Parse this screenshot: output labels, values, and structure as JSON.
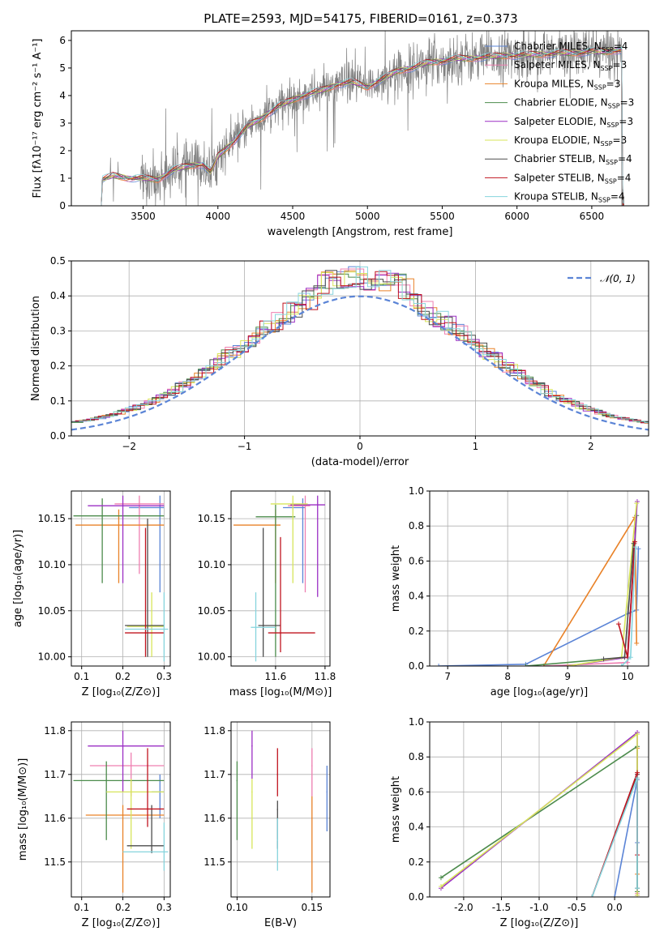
{
  "figure_title": "PLATE=2593, MJD=54175, FIBERID=0161, z=0.373",
  "colors": {
    "Chabrier MILES": "#5b84d6",
    "Salpeter MILES": "#ef7fb1",
    "Kroupa MILES": "#e98228",
    "Chabrier ELODIE": "#4c8b4c",
    "Salpeter ELODIE": "#9b2fc4",
    "Kroupa ELODIE": "#d7e55a",
    "Chabrier STELIB": "#4d4d4d",
    "Salpeter STELIB": "#c0141f",
    "Kroupa STELIB": "#86d4dd",
    "data": "#808080"
  },
  "legend_entries": [
    {
      "name": "Chabrier MILES",
      "nssp": "4"
    },
    {
      "name": "Salpeter MILES",
      "nssp": "3"
    },
    {
      "name": "Kroupa MILES",
      "nssp": "3"
    },
    {
      "name": "Chabrier ELODIE",
      "nssp": "3"
    },
    {
      "name": "Salpeter ELODIE",
      "nssp": "3"
    },
    {
      "name": "Kroupa ELODIE",
      "nssp": "3"
    },
    {
      "name": "Chabrier STELIB",
      "nssp": "4"
    },
    {
      "name": "Salpeter STELIB",
      "nssp": "4"
    },
    {
      "name": "Kroupa STELIB",
      "nssp": "4"
    }
  ],
  "chart_data": [
    {
      "id": "spectrum",
      "type": "line",
      "title": "PLATE=2593, MJD=54175, FIBERID=0161, z=0.373",
      "xlabel": "wavelength [Angstrom, rest frame]",
      "ylabel": "Flux [f_λ 10^-17 erg cm^-2 s^-1 A^-1]",
      "xlim": [
        3020,
        6880
      ],
      "ylim": [
        0,
        6.35
      ],
      "xticks": [
        3500,
        4000,
        4500,
        5000,
        5500,
        6000,
        6500
      ],
      "yticks": [
        0,
        1,
        2,
        3,
        4,
        5,
        6
      ],
      "legend_position": "top-right",
      "model_continuum": [
        [
          3220,
          0
        ],
        [
          3225,
          0.95
        ],
        [
          3300,
          1.1
        ],
        [
          3400,
          1.0
        ],
        [
          3500,
          1.0
        ],
        [
          3600,
          0.95
        ],
        [
          3700,
          1.3
        ],
        [
          3800,
          1.45
        ],
        [
          3900,
          1.5
        ],
        [
          3950,
          1.2
        ],
        [
          4000,
          1.8
        ],
        [
          4100,
          2.3
        ],
        [
          4200,
          2.9
        ],
        [
          4300,
          3.2
        ],
        [
          4400,
          3.6
        ],
        [
          4500,
          3.85
        ],
        [
          4600,
          4.05
        ],
        [
          4700,
          4.2
        ],
        [
          4800,
          4.4
        ],
        [
          4900,
          4.5
        ],
        [
          5000,
          4.3
        ],
        [
          5100,
          4.6
        ],
        [
          5200,
          4.9
        ],
        [
          5300,
          5.0
        ],
        [
          5400,
          5.2
        ],
        [
          5500,
          5.25
        ],
        [
          5600,
          5.35
        ],
        [
          5700,
          5.35
        ],
        [
          5800,
          5.4
        ],
        [
          5900,
          5.45
        ],
        [
          6000,
          5.45
        ],
        [
          6100,
          5.5
        ],
        [
          6200,
          5.5
        ],
        [
          6300,
          5.55
        ],
        [
          6400,
          5.55
        ],
        [
          6500,
          5.6
        ],
        [
          6600,
          5.6
        ],
        [
          6700,
          5.65
        ]
      ]
    },
    {
      "id": "residuals",
      "type": "histogram",
      "xlabel": "(data-model)/error",
      "ylabel": "Normed distribution",
      "xlim": [
        -2.5,
        2.5
      ],
      "ylim": [
        0,
        0.5
      ],
      "xticks": [
        -2,
        -1,
        0,
        1,
        2
      ],
      "yticks": [
        0.0,
        0.1,
        0.2,
        0.3,
        0.4,
        0.5
      ],
      "grid": true,
      "reference_curve_label": "N(0,1)",
      "legend_position": "top-right"
    },
    {
      "id": "age_vs_Z",
      "type": "scatter",
      "xlabel": "Z [log10(Z/Z_sun)]",
      "ylabel": "age  [log10(age/yr)]",
      "xlim": [
        0.075,
        0.315
      ],
      "ylim": [
        9.99,
        10.18
      ],
      "xticks": [
        0.1,
        0.2,
        0.3
      ],
      "yticks": [
        10.0,
        10.05,
        10.1,
        10.15
      ],
      "grid": true,
      "points": [
        {
          "model": "Chabrier MILES",
          "x": 0.29,
          "y": 10.162,
          "x_lo": 0.215,
          "x_hi": 0.3,
          "y_lo": 10.07,
          "y_hi": 10.175
        },
        {
          "model": "Salpeter MILES",
          "x": 0.24,
          "y": 10.166,
          "x_lo": 0.18,
          "x_hi": 0.3,
          "y_lo": 10.09,
          "y_hi": 10.175
        },
        {
          "model": "Kroupa MILES",
          "x": 0.19,
          "y": 10.143,
          "x_lo": 0.085,
          "x_hi": 0.3,
          "y_lo": 10.08,
          "y_hi": 10.16
        },
        {
          "model": "Chabrier ELODIE",
          "x": 0.15,
          "y": 10.153,
          "x_lo": 0.08,
          "x_hi": 0.3,
          "y_lo": 10.08,
          "y_hi": 10.172
        },
        {
          "model": "Salpeter ELODIE",
          "x": 0.2,
          "y": 10.164,
          "x_lo": 0.115,
          "x_hi": 0.3,
          "y_lo": 10.08,
          "y_hi": 10.175
        },
        {
          "model": "Kroupa ELODIE",
          "x": 0.27,
          "y": 10.033,
          "x_lo": 0.21,
          "x_hi": 0.3,
          "y_lo": 10.0,
          "y_hi": 10.07
        },
        {
          "model": "Chabrier STELIB",
          "x": 0.26,
          "y": 10.034,
          "x_lo": 0.205,
          "x_hi": 0.3,
          "y_lo": 10.0,
          "y_hi": 10.15
        },
        {
          "model": "Salpeter STELIB",
          "x": 0.255,
          "y": 10.026,
          "x_lo": 0.205,
          "x_hi": 0.3,
          "y_lo": 10.0,
          "y_hi": 10.14
        },
        {
          "model": "Kroupa STELIB",
          "x": 0.3,
          "y": 10.03,
          "x_lo": 0.205,
          "x_hi": 0.31,
          "y_lo": 9.995,
          "y_hi": 10.07
        }
      ]
    },
    {
      "id": "age_vs_mass",
      "type": "scatter",
      "xlabel": "mass [log10(M/M_sun)]",
      "ylabel": "",
      "xlim": [
        11.42,
        11.82
      ],
      "ylim": [
        9.99,
        10.18
      ],
      "xticks": [
        11.6,
        11.8
      ],
      "yticks": [
        10.0,
        10.05,
        10.1,
        10.15
      ],
      "grid": true,
      "points": [
        {
          "model": "Chabrier MILES",
          "x": 11.71,
          "y": 10.162,
          "x_lo": 11.63,
          "x_hi": 11.72,
          "y_lo": 10.08,
          "y_hi": 10.172
        },
        {
          "model": "Salpeter MILES",
          "x": 11.72,
          "y": 10.164,
          "x_lo": 11.65,
          "x_hi": 11.74,
          "y_lo": 10.07,
          "y_hi": 10.175
        },
        {
          "model": "Kroupa MILES",
          "x": 11.6,
          "y": 10.143,
          "x_lo": 11.43,
          "x_hi": 11.62,
          "y_lo": 10.08,
          "y_hi": 10.16
        },
        {
          "model": "Chabrier ELODIE",
          "x": 11.6,
          "y": 10.152,
          "x_lo": 11.52,
          "x_hi": 11.68,
          "y_lo": 10.0,
          "y_hi": 10.165
        },
        {
          "model": "Salpeter ELODIE",
          "x": 11.77,
          "y": 10.165,
          "x_lo": 11.66,
          "x_hi": 11.8,
          "y_lo": 10.065,
          "y_hi": 10.175
        },
        {
          "model": "Kroupa ELODIE",
          "x": 11.67,
          "y": 10.166,
          "x_lo": 11.58,
          "x_hi": 11.73,
          "y_lo": 10.08,
          "y_hi": 10.175
        },
        {
          "model": "Chabrier STELIB",
          "x": 11.55,
          "y": 10.034,
          "x_lo": 11.53,
          "x_hi": 11.62,
          "y_lo": 10.0,
          "y_hi": 10.14
        },
        {
          "model": "Salpeter STELIB",
          "x": 11.62,
          "y": 10.026,
          "x_lo": 11.57,
          "x_hi": 11.76,
          "y_lo": 10.005,
          "y_hi": 10.13
        },
        {
          "model": "Kroupa STELIB",
          "x": 11.52,
          "y": 10.032,
          "x_lo": 11.5,
          "x_hi": 11.6,
          "y_lo": 9.995,
          "y_hi": 10.07
        }
      ]
    },
    {
      "id": "weight_vs_age",
      "type": "line",
      "xlabel": "age  [log10(age/yr)]",
      "ylabel": "mass weight",
      "xlim": [
        6.7,
        10.35
      ],
      "ylim": [
        0,
        1.0
      ],
      "xticks": [
        7,
        8,
        9,
        10
      ],
      "yticks": [
        0.0,
        0.2,
        0.4,
        0.6,
        0.8,
        1.0
      ],
      "grid": true,
      "series": [
        {
          "model": "Chabrier MILES",
          "x": [
            6.85,
            8.3,
            10.0,
            10.15,
            10.18
          ],
          "y": [
            0.0,
            0.01,
            0.3,
            0.32,
            0.67
          ]
        },
        {
          "model": "Salpeter MILES",
          "x": [
            8.6,
            10.0,
            10.12
          ],
          "y": [
            0.0,
            0.02,
            0.7
          ]
        },
        {
          "model": "Kroupa MILES",
          "x": [
            8.6,
            10.12,
            10.15
          ],
          "y": [
            0.0,
            0.85,
            0.13
          ]
        },
        {
          "model": "Chabrier ELODIE",
          "x": [
            8.3,
            10.0,
            10.15
          ],
          "y": [
            0.0,
            0.05,
            0.86
          ]
        },
        {
          "model": "Salpeter ELODIE",
          "x": [
            9.0,
            10.0,
            10.16
          ],
          "y": [
            0.0,
            0.05,
            0.94
          ]
        },
        {
          "model": "Kroupa ELODIE",
          "x": [
            9.0,
            9.9,
            10.15
          ],
          "y": [
            0.0,
            0.05,
            0.93
          ]
        },
        {
          "model": "Chabrier STELIB",
          "x": [
            9.6,
            9.95,
            10.1
          ],
          "y": [
            0.04,
            0.05,
            0.7
          ]
        },
        {
          "model": "Salpeter STELIB",
          "x": [
            9.85,
            10.0,
            10.12
          ],
          "y": [
            0.24,
            0.05,
            0.71
          ]
        },
        {
          "model": "Kroupa STELIB",
          "x": [
            9.9,
            10.05,
            10.13
          ],
          "y": [
            0.0,
            0.05,
            0.68
          ]
        }
      ]
    },
    {
      "id": "mass_vs_Z",
      "type": "scatter",
      "xlabel": "Z [log10(Z/Z_sun)]",
      "ylabel": "mass [log10(M/M_sun)]",
      "xlim": [
        0.075,
        0.315
      ],
      "ylim": [
        11.42,
        11.82
      ],
      "xticks": [
        0.1,
        0.2,
        0.3
      ],
      "yticks": [
        11.5,
        11.6,
        11.7,
        11.8
      ],
      "grid": true,
      "points": [
        {
          "model": "Chabrier MILES",
          "x": 0.29,
          "y": 11.66,
          "x_lo": 0.27,
          "x_hi": 0.3,
          "y_lo": 11.6,
          "y_hi": 11.7
        },
        {
          "model": "Salpeter MILES",
          "x": 0.22,
          "y": 11.72,
          "x_lo": 0.12,
          "x_hi": 0.3,
          "y_lo": 11.65,
          "y_hi": 11.75
        },
        {
          "model": "Kroupa MILES",
          "x": 0.2,
          "y": 11.607,
          "x_lo": 0.11,
          "x_hi": 0.3,
          "y_lo": 11.43,
          "y_hi": 11.63
        },
        {
          "model": "Chabrier ELODIE",
          "x": 0.16,
          "y": 11.686,
          "x_lo": 0.08,
          "x_hi": 0.3,
          "y_lo": 11.55,
          "y_hi": 11.73
        },
        {
          "model": "Salpeter ELODIE",
          "x": 0.2,
          "y": 11.765,
          "x_lo": 0.115,
          "x_hi": 0.3,
          "y_lo": 11.66,
          "y_hi": 11.8
        },
        {
          "model": "Kroupa ELODIE",
          "x": 0.22,
          "y": 11.66,
          "x_lo": 0.16,
          "x_hi": 0.3,
          "y_lo": 11.53,
          "y_hi": 11.69
        },
        {
          "model": "Chabrier STELIB",
          "x": 0.27,
          "y": 11.537,
          "x_lo": 0.21,
          "x_hi": 0.3,
          "y_lo": 11.52,
          "y_hi": 11.63
        },
        {
          "model": "Salpeter STELIB",
          "x": 0.26,
          "y": 11.621,
          "x_lo": 0.21,
          "x_hi": 0.3,
          "y_lo": 11.58,
          "y_hi": 11.76
        },
        {
          "model": "Kroupa STELIB",
          "x": 0.3,
          "y": 11.523,
          "x_lo": 0.2,
          "x_hi": 0.31,
          "y_lo": 11.48,
          "y_hi": 11.59
        }
      ]
    },
    {
      "id": "mass_vs_EBV",
      "type": "scatter",
      "xlabel": "E(B-V)",
      "ylabel": "",
      "xlim": [
        0.096,
        0.162
      ],
      "ylim": [
        11.42,
        11.82
      ],
      "xticks": [
        0.1,
        0.15
      ],
      "yticks": [
        11.5,
        11.6,
        11.7,
        11.8
      ],
      "grid": true,
      "points": [
        {
          "model": "Chabrier MILES",
          "x": 0.16,
          "y": 11.66,
          "y_lo": 11.57,
          "y_hi": 11.72
        },
        {
          "model": "Salpeter MILES",
          "x": 0.15,
          "y": 11.72,
          "y_lo": 11.65,
          "y_hi": 11.76
        },
        {
          "model": "Kroupa MILES",
          "x": 0.15,
          "y": 11.6,
          "y_lo": 11.43,
          "y_hi": 11.65
        },
        {
          "model": "Chabrier ELODIE",
          "x": 0.1,
          "y": 11.686,
          "y_lo": 11.55,
          "y_hi": 11.73
        },
        {
          "model": "Salpeter ELODIE",
          "x": 0.11,
          "y": 11.765,
          "y_lo": 11.69,
          "y_hi": 11.8
        },
        {
          "model": "Kroupa ELODIE",
          "x": 0.11,
          "y": 11.66,
          "y_lo": 11.53,
          "y_hi": 11.69
        },
        {
          "model": "Chabrier STELIB",
          "x": 0.127,
          "y": 11.62,
          "y_lo": 11.53,
          "y_hi": 11.64
        },
        {
          "model": "Salpeter STELIB",
          "x": 0.127,
          "y": 11.7,
          "y_lo": 11.65,
          "y_hi": 11.76
        },
        {
          "model": "Kroupa STELIB",
          "x": 0.127,
          "y": 11.55,
          "y_lo": 11.48,
          "y_hi": 11.6
        }
      ]
    },
    {
      "id": "weight_vs_Z",
      "type": "line",
      "xlabel": "Z [log10(Z/Z_sun)]",
      "ylabel": "mass weight",
      "xlim": [
        -2.45,
        0.45
      ],
      "ylim": [
        0,
        1.0
      ],
      "xticks": [
        -2.0,
        -1.5,
        -1.0,
        -0.5,
        0.0
      ],
      "yticks": [
        0.0,
        0.2,
        0.4,
        0.6,
        0.8,
        1.0
      ],
      "grid": true,
      "series": [
        {
          "model": "Chabrier MILES",
          "x": [
            0.0,
            0.3,
            0.3
          ],
          "y": [
            0.0,
            0.67,
            0.31
          ]
        },
        {
          "model": "Salpeter MILES",
          "x": [
            0.3,
            0.3
          ],
          "y": [
            0.7,
            0.02
          ]
        },
        {
          "model": "Kroupa MILES",
          "x": [
            0.3,
            0.3
          ],
          "y": [
            0.85,
            0.13
          ]
        },
        {
          "model": "Chabrier ELODIE",
          "x": [
            -2.3,
            0.3,
            0.3
          ],
          "y": [
            0.11,
            0.86,
            0.03
          ]
        },
        {
          "model": "Salpeter ELODIE",
          "x": [
            -2.3,
            0.3,
            0.3
          ],
          "y": [
            0.05,
            0.94,
            0.01
          ]
        },
        {
          "model": "Kroupa ELODIE",
          "x": [
            -2.3,
            0.3,
            0.3
          ],
          "y": [
            0.06,
            0.93,
            0.01
          ]
        },
        {
          "model": "Chabrier STELIB",
          "x": [
            -0.3,
            0.3,
            0.3
          ],
          "y": [
            0.0,
            0.7,
            0.05
          ]
        },
        {
          "model": "Salpeter STELIB",
          "x": [
            -0.3,
            0.3,
            0.3
          ],
          "y": [
            0.0,
            0.71,
            0.24
          ]
        },
        {
          "model": "Kroupa STELIB",
          "x": [
            -0.3,
            0.3,
            0.3
          ],
          "y": [
            0.0,
            0.68,
            0.05
          ]
        }
      ]
    }
  ]
}
